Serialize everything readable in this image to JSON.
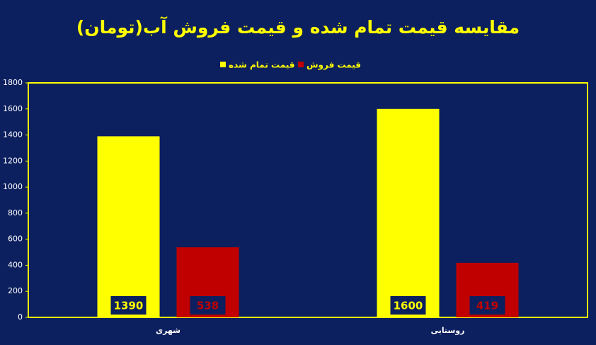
{
  "chart_data": {
    "type": "bar",
    "title": "مقایسه قیمت تمام شده و قیمت فروش آب(تومان)",
    "categories": [
      "شهری",
      "روستایی"
    ],
    "series": [
      {
        "name": "قیمت تمام شده",
        "color": "#ffff00",
        "values": [
          1390,
          1600
        ]
      },
      {
        "name": "قیمت فروش",
        "color": "#c00000",
        "values": [
          538,
          419
        ]
      }
    ],
    "ylim": [
      0,
      1800
    ],
    "yticks": [
      0,
      200,
      400,
      600,
      800,
      1000,
      1200,
      1400,
      1600,
      1800
    ],
    "grid": false,
    "legend": "top"
  }
}
